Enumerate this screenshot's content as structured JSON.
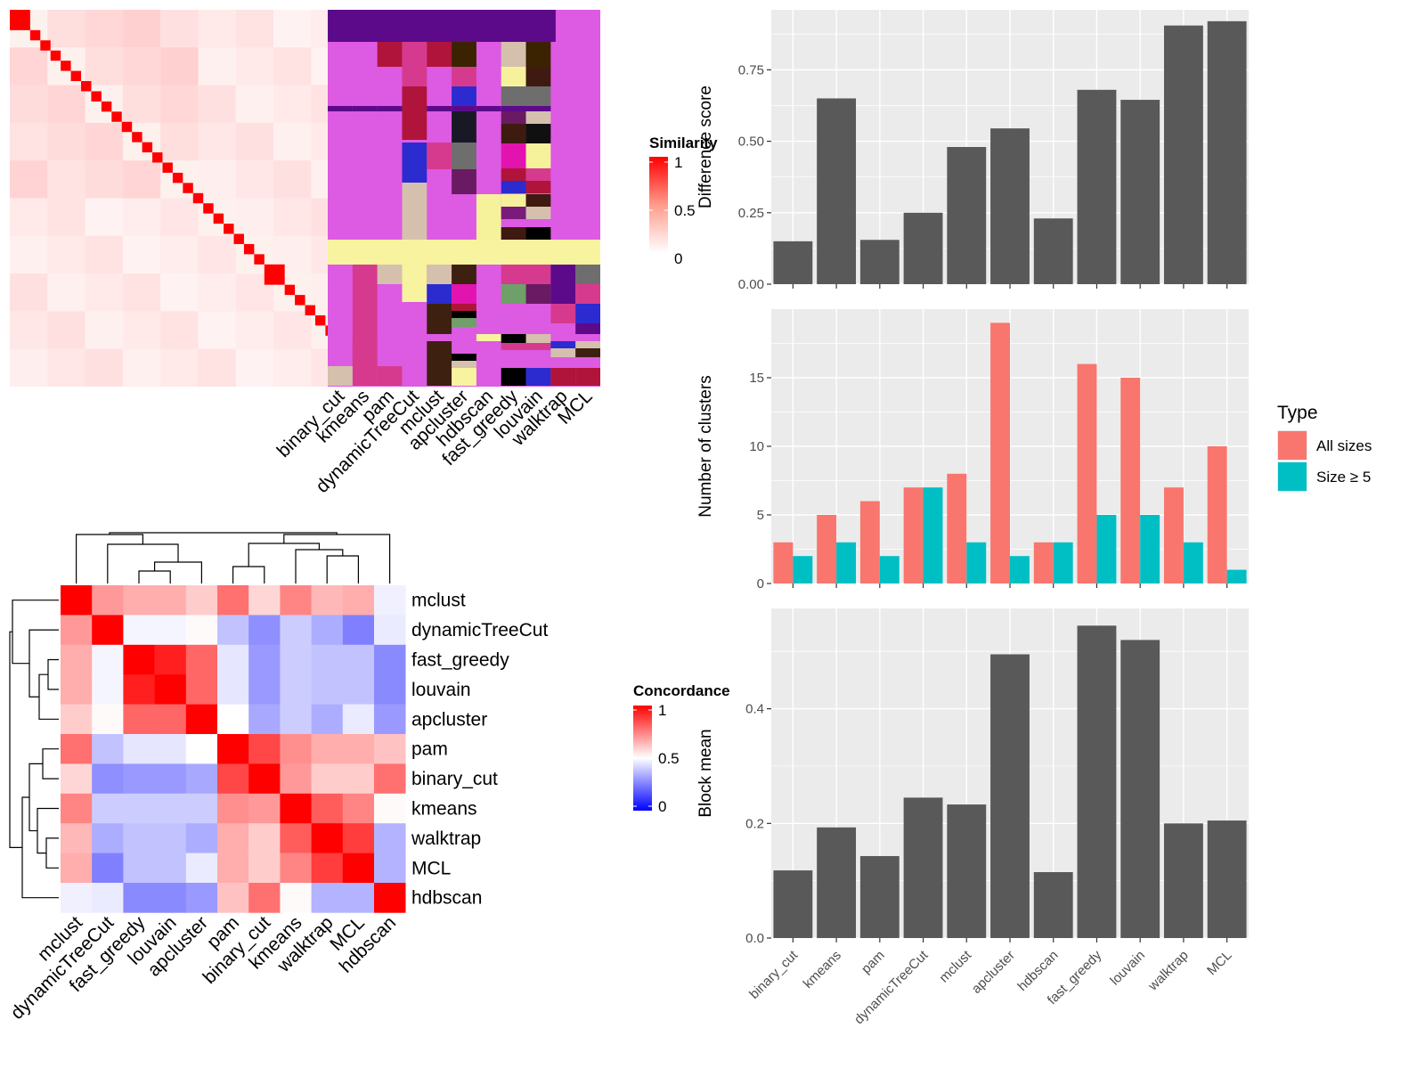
{
  "colors": {
    "bar_dark": "#595959",
    "panel_bg": "#ebebeb",
    "all_sizes": "#F8766D",
    "size_ge5": "#00BFC4"
  },
  "similarity_legend": {
    "title": "Similarity",
    "ticks": [
      "1",
      "0.5",
      "0"
    ]
  },
  "concordance_legend": {
    "title": "Concordance",
    "ticks": [
      "1",
      "0.5",
      "0"
    ]
  },
  "type_legend": {
    "title": "Type",
    "entries": [
      "All sizes",
      "Size ≥ 5"
    ]
  },
  "methods_top": [
    "binary_cut",
    "kmeans",
    "pam",
    "dynamicTreeCut",
    "mclust",
    "apcluster",
    "hdbscan",
    "fast_greedy",
    "louvain",
    "walktrap",
    "MCL"
  ],
  "concordance_order": [
    "mclust",
    "dynamicTreeCut",
    "fast_greedy",
    "louvain",
    "apcluster",
    "pam",
    "binary_cut",
    "kmeans",
    "walktrap",
    "MCL",
    "hdbscan"
  ],
  "concordance_matrix": [
    [
      1.0,
      0.7,
      0.66,
      0.66,
      0.6,
      0.78,
      0.58,
      0.74,
      0.64,
      0.66,
      0.47
    ],
    [
      0.7,
      1.0,
      0.48,
      0.48,
      0.51,
      0.38,
      0.28,
      0.4,
      0.34,
      0.25,
      0.46
    ],
    [
      0.66,
      0.48,
      1.0,
      0.94,
      0.8,
      0.45,
      0.3,
      0.4,
      0.38,
      0.38,
      0.27
    ],
    [
      0.66,
      0.48,
      0.94,
      1.0,
      0.8,
      0.45,
      0.3,
      0.4,
      0.38,
      0.38,
      0.27
    ],
    [
      0.6,
      0.51,
      0.8,
      0.8,
      1.0,
      0.5,
      0.33,
      0.4,
      0.34,
      0.46,
      0.3
    ],
    [
      0.78,
      0.38,
      0.45,
      0.45,
      0.5,
      1.0,
      0.86,
      0.72,
      0.66,
      0.66,
      0.62
    ],
    [
      0.58,
      0.28,
      0.3,
      0.3,
      0.33,
      0.86,
      1.0,
      0.7,
      0.6,
      0.6,
      0.78
    ],
    [
      0.74,
      0.4,
      0.4,
      0.4,
      0.4,
      0.72,
      0.7,
      1.0,
      0.82,
      0.74,
      0.51
    ],
    [
      0.64,
      0.34,
      0.38,
      0.38,
      0.34,
      0.66,
      0.6,
      0.82,
      1.0,
      0.88,
      0.35
    ],
    [
      0.66,
      0.25,
      0.38,
      0.38,
      0.46,
      0.66,
      0.6,
      0.74,
      0.88,
      1.0,
      0.35
    ],
    [
      0.47,
      0.46,
      0.27,
      0.27,
      0.3,
      0.62,
      0.78,
      0.51,
      0.35,
      0.35,
      1.0
    ]
  ],
  "chart_data": [
    {
      "type": "heatmap",
      "title": "",
      "legend_title": "Similarity",
      "diagonal_blocks": [
        2,
        1,
        1,
        1,
        1,
        1,
        1,
        1,
        1,
        1,
        1,
        1,
        1,
        1,
        1,
        1,
        1,
        1,
        1,
        1,
        1,
        1,
        1,
        1,
        2,
        1,
        1,
        1,
        1,
        1,
        1,
        1,
        1,
        1,
        1
      ],
      "value_range": [
        0,
        1
      ]
    },
    {
      "type": "table",
      "title": "",
      "columns": [
        "binary_cut",
        "kmeans",
        "pam",
        "dynamicTreeCut",
        "mclust",
        "apcluster",
        "hdbscan",
        "fast_greedy",
        "louvain",
        "walktrap",
        "MCL"
      ]
    },
    {
      "type": "heatmap",
      "title": "",
      "legend_title": "Concordance",
      "rows": [
        "mclust",
        "dynamicTreeCut",
        "fast_greedy",
        "louvain",
        "apcluster",
        "pam",
        "binary_cut",
        "kmeans",
        "walktrap",
        "MCL",
        "hdbscan"
      ],
      "value_range": [
        0,
        1
      ]
    },
    {
      "type": "bar",
      "categories": [
        "binary_cut",
        "kmeans",
        "pam",
        "dynamicTreeCut",
        "mclust",
        "apcluster",
        "hdbscan",
        "fast_greedy",
        "louvain",
        "walktrap",
        "MCL"
      ],
      "values": [
        0.15,
        0.65,
        0.155,
        0.25,
        0.48,
        0.545,
        0.23,
        0.68,
        0.645,
        0.905,
        0.92
      ],
      "title": "",
      "xlabel": "",
      "ylabel": "Difference score",
      "ylim": [
        0,
        0.96
      ],
      "yticks": [
        0.0,
        0.25,
        0.5,
        0.75
      ],
      "ytick_labels": [
        "0.00",
        "0.25",
        "0.50",
        "0.75"
      ],
      "grid": true
    },
    {
      "type": "bar",
      "categories": [
        "binary_cut",
        "kmeans",
        "pam",
        "dynamicTreeCut",
        "mclust",
        "apcluster",
        "hdbscan",
        "fast_greedy",
        "louvain",
        "walktrap",
        "MCL"
      ],
      "series": [
        {
          "name": "All sizes",
          "values": [
            3,
            5,
            6,
            7,
            8,
            19,
            3,
            16,
            15,
            7,
            10
          ]
        },
        {
          "name": "Size ≥ 5",
          "values": [
            2,
            3,
            2,
            7,
            3,
            2,
            3,
            5,
            5,
            3,
            1
          ]
        }
      ],
      "title": "",
      "xlabel": "",
      "ylabel": "Number of clusters",
      "ylim": [
        0,
        20
      ],
      "yticks": [
        0,
        5,
        10,
        15
      ],
      "ytick_labels": [
        "0",
        "5",
        "10",
        "15"
      ],
      "legend": "right",
      "grid": true
    },
    {
      "type": "bar",
      "categories": [
        "binary_cut",
        "kmeans",
        "pam",
        "dynamicTreeCut",
        "mclust",
        "apcluster",
        "hdbscan",
        "fast_greedy",
        "louvain",
        "walktrap",
        "MCL"
      ],
      "values": [
        0.118,
        0.193,
        0.143,
        0.245,
        0.233,
        0.495,
        0.115,
        0.545,
        0.52,
        0.2,
        0.205
      ],
      "title": "",
      "xlabel": "",
      "ylabel": "Block mean",
      "ylim": [
        0,
        0.575
      ],
      "yticks": [
        0.0,
        0.2,
        0.4
      ],
      "ytick_labels": [
        "0.0",
        "0.2",
        "0.4"
      ],
      "grid": true
    }
  ]
}
